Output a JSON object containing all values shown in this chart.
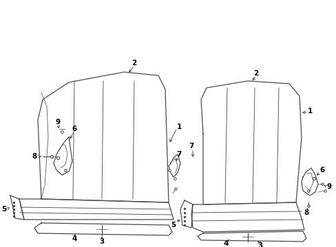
{
  "background_color": "#ffffff",
  "line_color": "#4a4a4a",
  "text_color": "#000000",
  "figure_width": 4.89,
  "figure_height": 3.6,
  "dpi": 100
}
